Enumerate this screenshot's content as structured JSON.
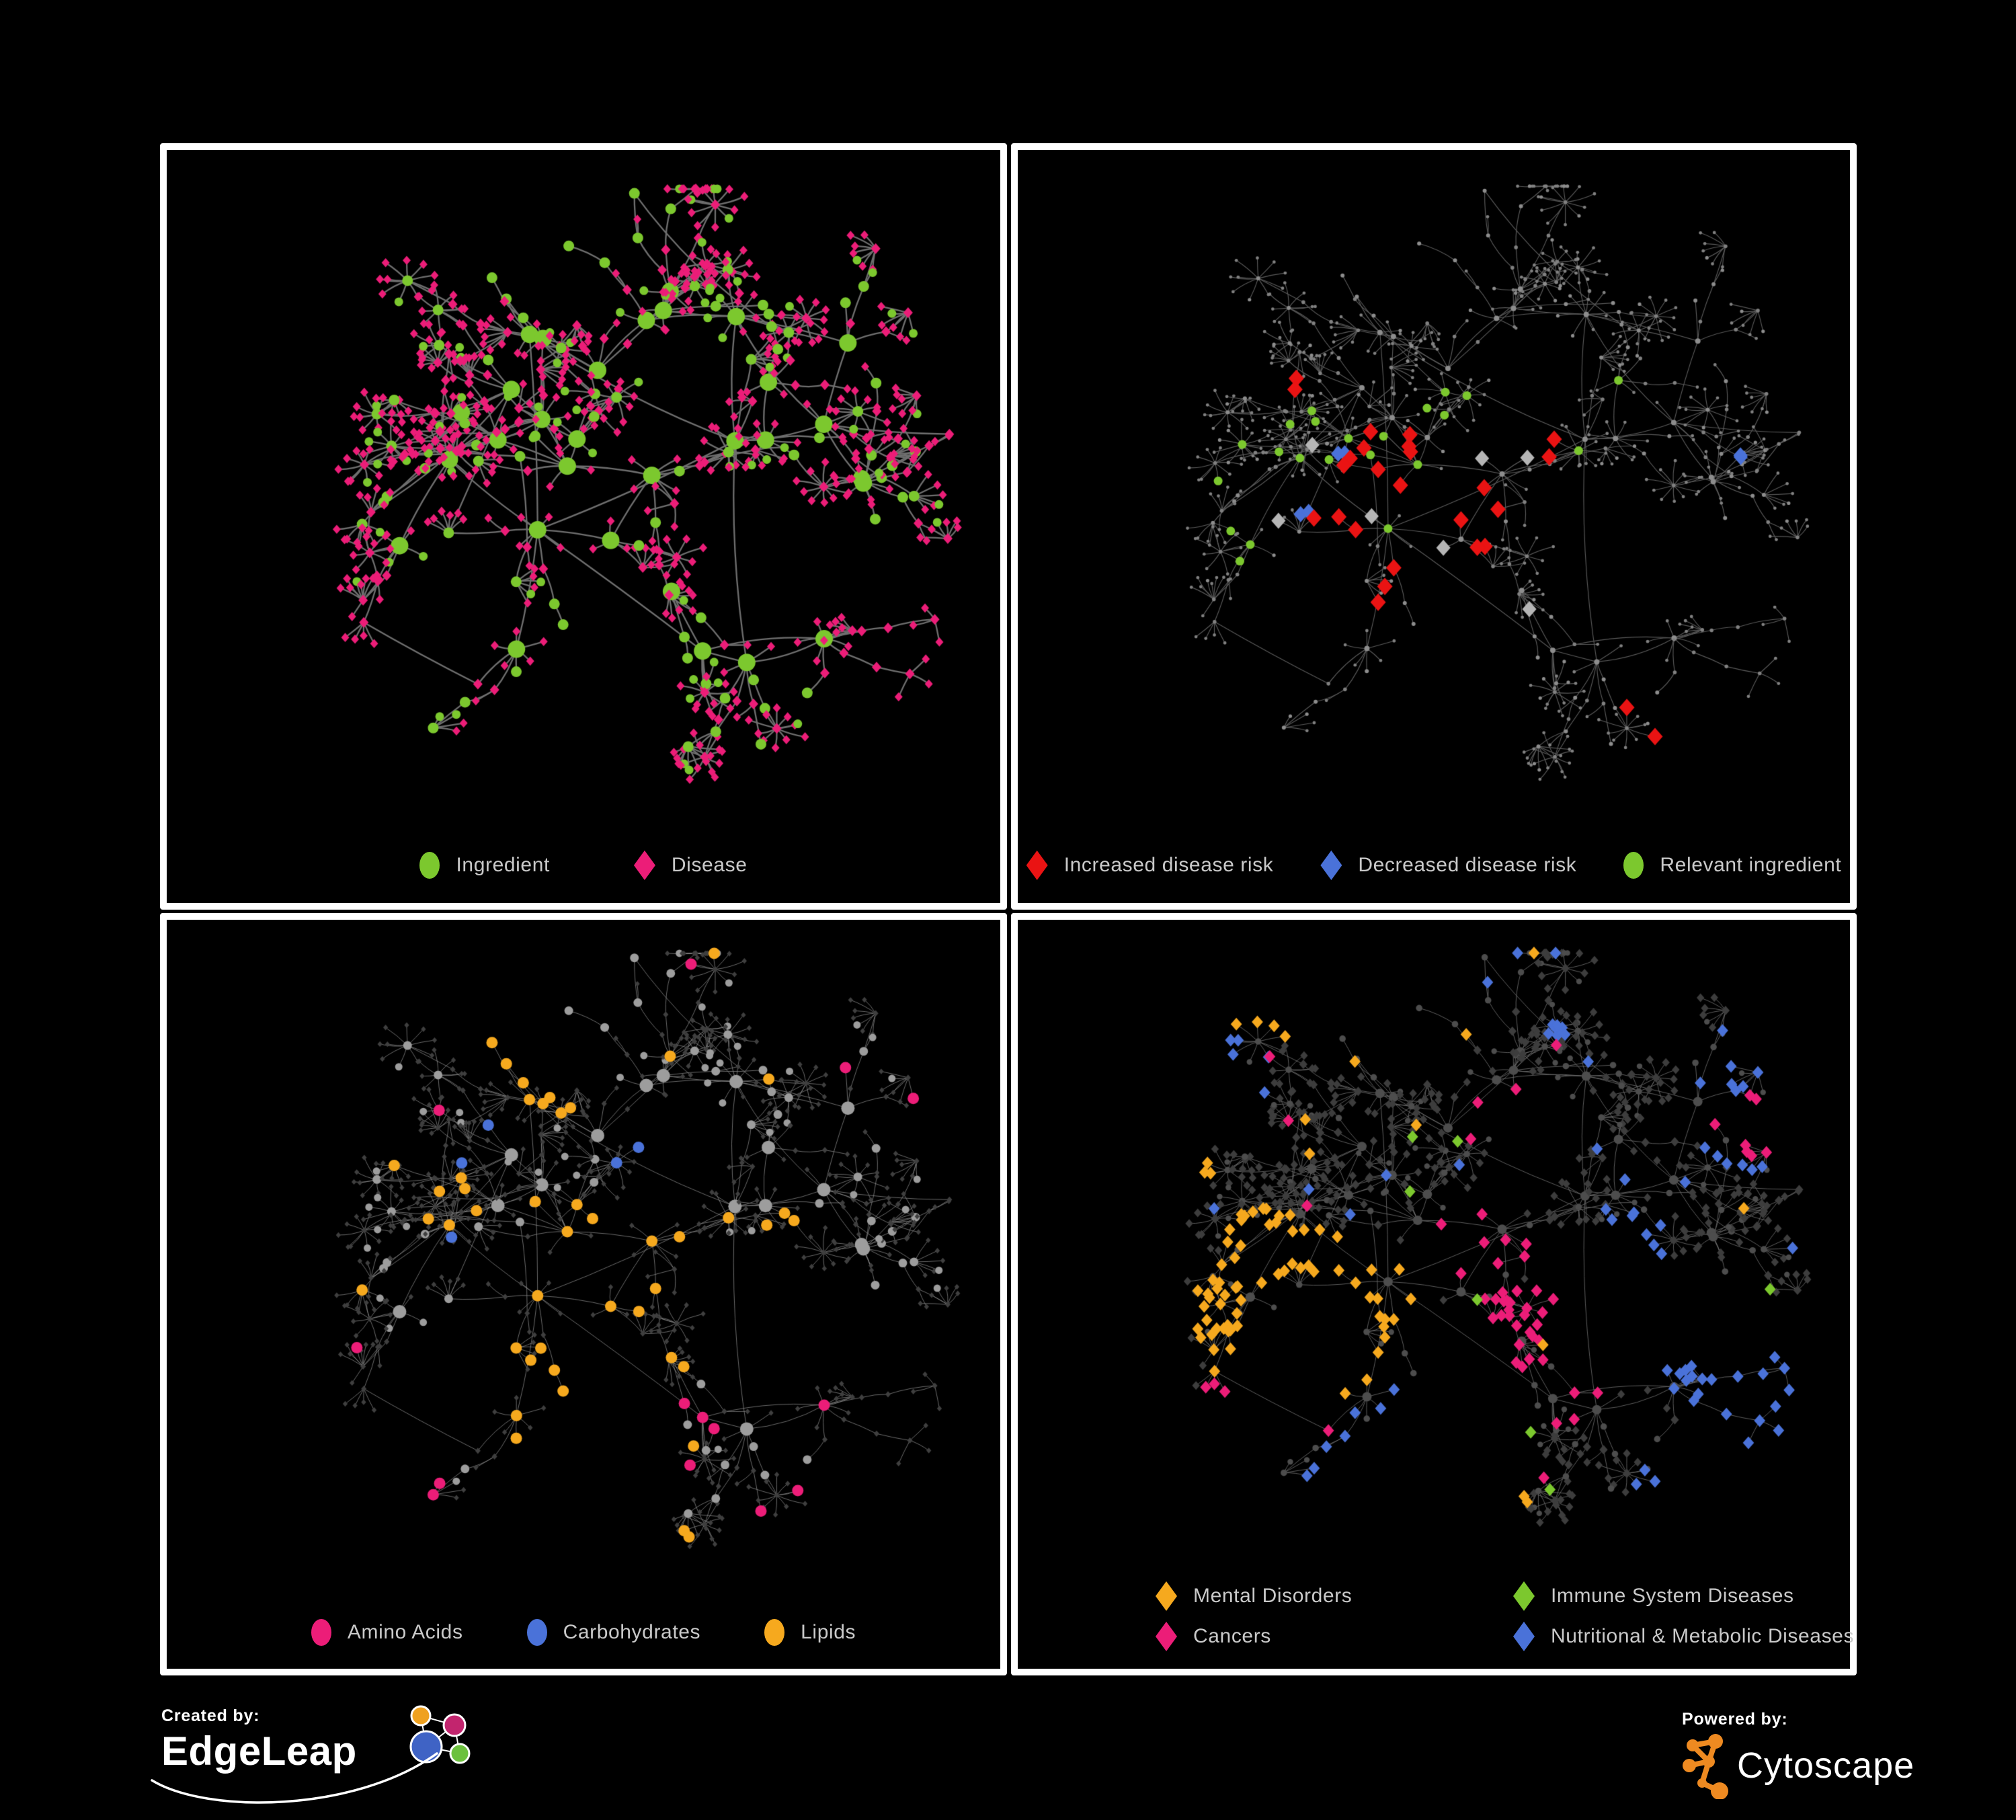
{
  "page": {
    "background": "#000000",
    "panel_border_color": "#ffffff",
    "legend_text_color": "#c9c9c9"
  },
  "network": {
    "seed": 20240,
    "hubs": 30,
    "cross": 24
  },
  "chart_data": {
    "type": "network",
    "description": "Four panels of the same ingredient-disease association network rendered with different colorings",
    "panels": [
      "Ingredient vs Disease",
      "Disease risk direction",
      "Ingredient chemical classes",
      "Disease categories"
    ]
  },
  "panels": [
    {
      "name": "ingredient-disease",
      "legend": [
        {
          "label": "Ingredient",
          "shape": "circle",
          "color": "#7cc82e"
        },
        {
          "label": "Disease",
          "shape": "diamond",
          "color": "#ec1d78"
        }
      ],
      "render": {
        "edge_color": "#6f6f6f",
        "edge_width": 2.3,
        "margins": [
          46,
          44,
          46,
          150
        ],
        "i": {
          "shape": "circle",
          "color": "#7cc82e",
          "r": {
            "hub": 13,
            "mid": 8,
            "leaf": 6.5
          }
        },
        "d": {
          "shape": "diamond",
          "color": "#ec1d78",
          "r": {
            "hub": 9,
            "mid": 8,
            "leaf": 6.8
          }
        }
      },
      "highlights": []
    },
    {
      "name": "disease-risk",
      "legend": [
        {
          "label": "Increased disease risk",
          "shape": "diamond",
          "color": "#ea1313"
        },
        {
          "label": "Decreased disease risk",
          "shape": "diamond",
          "color": "#4a72d9"
        },
        {
          "label": "Relevant ingredient",
          "shape": "circle",
          "color": "#7cc82e"
        }
      ],
      "render": {
        "edge_color": "#5a5a5a",
        "edge_width": 1.15,
        "margins": [
          46,
          40,
          46,
          150
        ],
        "i": {
          "shape": "circle",
          "color": "#8d8d8d",
          "r": {
            "hub": 4,
            "mid": 3,
            "leaf": 2.6
          }
        },
        "d": {
          "shape": "circle",
          "color": "#808080",
          "r": {
            "hub": 3.4,
            "mid": 2.8,
            "leaf": 2.4
          }
        }
      },
      "highlights": [
        {
          "shape": "diamond",
          "color": "#ea1313",
          "r": 13,
          "on": "d",
          "scatter": 0,
          "spots": [
            [
              0.44,
              0.46,
              9,
              0.07
            ],
            [
              0.54,
              0.54,
              5,
              0.06
            ],
            [
              0.36,
              0.58,
              3,
              0.05
            ],
            [
              0.64,
              0.42,
              2,
              0.05
            ],
            [
              0.5,
              0.68,
              3,
              0.05
            ],
            [
              0.3,
              0.33,
              2,
              0.05
            ],
            [
              0.77,
              0.82,
              1,
              0.03
            ],
            [
              0.83,
              0.88,
              1,
              0.03
            ]
          ]
        },
        {
          "shape": "diamond",
          "color": "#4a72d9",
          "r": 12,
          "on": "d",
          "scatter": 0,
          "spots": [
            [
              0.4,
              0.45,
              2,
              0.04
            ],
            [
              0.37,
              0.55,
              2,
              0.04
            ],
            [
              0.9,
              0.45,
              2,
              0.04
            ]
          ]
        },
        {
          "shape": "diamond",
          "color": "#b5b5b5",
          "r": 12,
          "on": "d",
          "scatter": 1,
          "spots": [
            [
              0.34,
              0.42,
              1,
              0.04
            ],
            [
              0.42,
              0.56,
              1,
              0.04
            ],
            [
              0.5,
              0.62,
              1,
              0.04
            ],
            [
              0.57,
              0.47,
              1,
              0.04
            ],
            [
              0.63,
              0.7,
              1,
              0.04
            ],
            [
              0.28,
              0.52,
              1,
              0.04
            ]
          ]
        },
        {
          "shape": "circle",
          "color": "#7cc82e",
          "r": 6.5,
          "on": "i",
          "scatter": 3,
          "spots": [
            [
              0.3,
              0.4,
              6,
              0.09
            ],
            [
              0.42,
              0.5,
              6,
              0.09
            ],
            [
              0.52,
              0.38,
              4,
              0.07
            ],
            [
              0.24,
              0.6,
              3,
              0.06
            ],
            [
              0.02,
              0.45,
              1,
              0.03
            ],
            [
              0.74,
              0.62,
              1,
              0.03
            ],
            [
              0.43,
              0.9,
              1,
              0.03
            ],
            [
              0.08,
              0.2,
              1,
              0.03
            ]
          ]
        }
      ]
    },
    {
      "name": "chemical-classes",
      "legend": [
        {
          "label": "Amino Acids",
          "shape": "circle",
          "color": "#ec1d78"
        },
        {
          "label": "Carbohydrates",
          "shape": "circle",
          "color": "#4a72d9"
        },
        {
          "label": "Lipids",
          "shape": "circle",
          "color": "#f6a91e"
        }
      ],
      "render": {
        "edge_color": "#8e8e8e",
        "edge_width": 0.75,
        "margins": [
          46,
          36,
          46,
          148
        ],
        "i": {
          "shape": "circle",
          "color": "#9d9d9d",
          "r": {
            "hub": 10,
            "mid": 6.5,
            "leaf": 5.5
          }
        },
        "d": {
          "shape": "diamond",
          "color": "#3f3f3f",
          "r": {
            "hub": 5,
            "mid": 4.6,
            "leaf": 4.2
          }
        }
      },
      "highlights": [
        {
          "shape": "circle",
          "color": "#f6a91e",
          "r": 8.5,
          "on": "i",
          "scatter": 8,
          "spots": [
            [
              0.55,
              0.56,
              20,
              0.07
            ],
            [
              0.47,
              0.74,
              10,
              0.06
            ],
            [
              0.43,
              0.22,
              8,
              0.09
            ],
            [
              0.33,
              0.4,
              6,
              0.07
            ],
            [
              0.76,
              0.44,
              3,
              0.05
            ],
            [
              0.65,
              0.93,
              2,
              0.04
            ],
            [
              0.04,
              0.9,
              1,
              0.03
            ]
          ]
        },
        {
          "shape": "circle",
          "color": "#4a72d9",
          "r": 8.5,
          "on": "i",
          "scatter": 2,
          "spots": [
            [
              0.56,
              0.53,
              5,
              0.05
            ],
            [
              0.08,
              0.11,
              1,
              0.04
            ],
            [
              0.82,
              0.64,
              1,
              0.04
            ],
            [
              0.6,
              0.3,
              2,
              0.05
            ],
            [
              0.3,
              0.33,
              1,
              0.04
            ]
          ]
        },
        {
          "shape": "circle",
          "color": "#ec1d78",
          "r": 8.5,
          "on": "i",
          "scatter": 3,
          "spots": [
            [
              0.1,
              0.53,
              2,
              0.05
            ],
            [
              0.66,
              0.74,
              3,
              0.06
            ],
            [
              0.74,
              0.95,
              2,
              0.05
            ],
            [
              0.92,
              0.24,
              1,
              0.04
            ],
            [
              0.3,
              0.96,
              2,
              0.05
            ],
            [
              0.06,
              0.8,
              1,
              0.04
            ],
            [
              0.88,
              0.76,
              1,
              0.04
            ],
            [
              0.55,
              0.85,
              1,
              0.04
            ],
            [
              0.2,
              0.7,
              1,
              0.04
            ]
          ]
        }
      ]
    },
    {
      "name": "disease-categories",
      "legend": [
        {
          "label": "Mental Disorders",
          "shape": "diamond",
          "color": "#f6a91e"
        },
        {
          "label": "Immune System Diseases",
          "shape": "diamond",
          "color": "#7cc82e"
        },
        {
          "label": "Cancers",
          "shape": "diamond",
          "color": "#ec1d78"
        },
        {
          "label": "Nutritional & Metabolic Diseases",
          "shape": "diamond",
          "color": "#4a72d9"
        }
      ],
      "render": {
        "edge_color": "#6e6e6e",
        "edge_width": 0.85,
        "margins": [
          46,
          36,
          46,
          185
        ],
        "i": {
          "shape": "circle",
          "color": "#4d4d4d",
          "r": {
            "hub": 7,
            "mid": 4.8,
            "leaf": 4.2
          }
        },
        "d": {
          "shape": "diamond",
          "color": "#3d3d3d",
          "r": {
            "hub": 7.5,
            "mid": 7,
            "leaf": 6.5
          }
        }
      },
      "highlights": [
        {
          "shape": "diamond",
          "color": "#f6a91e",
          "r": 9.5,
          "on": "d",
          "scatter": 6,
          "spots": [
            [
              0.34,
              0.62,
              55,
              0.1
            ],
            [
              0.28,
              0.5,
              12,
              0.06
            ],
            [
              0.3,
              0.1,
              4,
              0.06
            ],
            [
              0.44,
              0.09,
              3,
              0.05
            ],
            [
              0.55,
              0.9,
              2,
              0.04
            ],
            [
              0.13,
              0.35,
              3,
              0.05
            ]
          ]
        },
        {
          "shape": "diamond",
          "color": "#ec1d78",
          "r": 9.5,
          "on": "d",
          "scatter": 5,
          "spots": [
            [
              0.64,
              0.68,
              30,
              0.09
            ],
            [
              0.56,
              0.5,
              8,
              0.06
            ],
            [
              0.93,
              0.3,
              7,
              0.05
            ],
            [
              0.47,
              0.93,
              3,
              0.05
            ],
            [
              0.27,
              0.8,
              4,
              0.05
            ],
            [
              0.6,
              0.3,
              3,
              0.05
            ]
          ]
        },
        {
          "shape": "diamond",
          "color": "#4a72d9",
          "r": 9.5,
          "on": "d",
          "scatter": 12,
          "spots": [
            [
              0.9,
              0.7,
              20,
              0.07
            ],
            [
              0.93,
              0.28,
              12,
              0.08
            ],
            [
              0.66,
              0.14,
              9,
              0.09
            ],
            [
              0.36,
              0.86,
              7,
              0.07
            ],
            [
              0.76,
              0.48,
              8,
              0.06
            ],
            [
              0.2,
              0.22,
              5,
              0.08
            ],
            [
              0.5,
              0.05,
              3,
              0.05
            ],
            [
              0.85,
              0.9,
              4,
              0.06
            ]
          ]
        },
        {
          "shape": "diamond",
          "color": "#7cc82e",
          "r": 9.5,
          "on": "d",
          "scatter": 2,
          "spots": [
            [
              0.52,
              0.33,
              1,
              0.04
            ],
            [
              0.46,
              0.42,
              1,
              0.04
            ],
            [
              0.56,
              0.6,
              1,
              0.04
            ],
            [
              0.3,
              0.95,
              1,
              0.04
            ],
            [
              0.92,
              0.58,
              1,
              0.04
            ],
            [
              0.13,
              0.9,
              1,
              0.04
            ],
            [
              0.6,
              0.78,
              1,
              0.04
            ]
          ]
        }
      ]
    }
  ],
  "footer": {
    "created_by": "Created by:",
    "created_brand": "EdgeLeap",
    "powered_by": "Powered by:",
    "powered_brand": "Cytoscape",
    "edgeleap_colors": {
      "orange": "#efa11f",
      "magenta": "#c2256e",
      "blue": "#3f63c5",
      "green": "#6cc13e"
    },
    "cytoscape_color": "#ee8a21"
  }
}
